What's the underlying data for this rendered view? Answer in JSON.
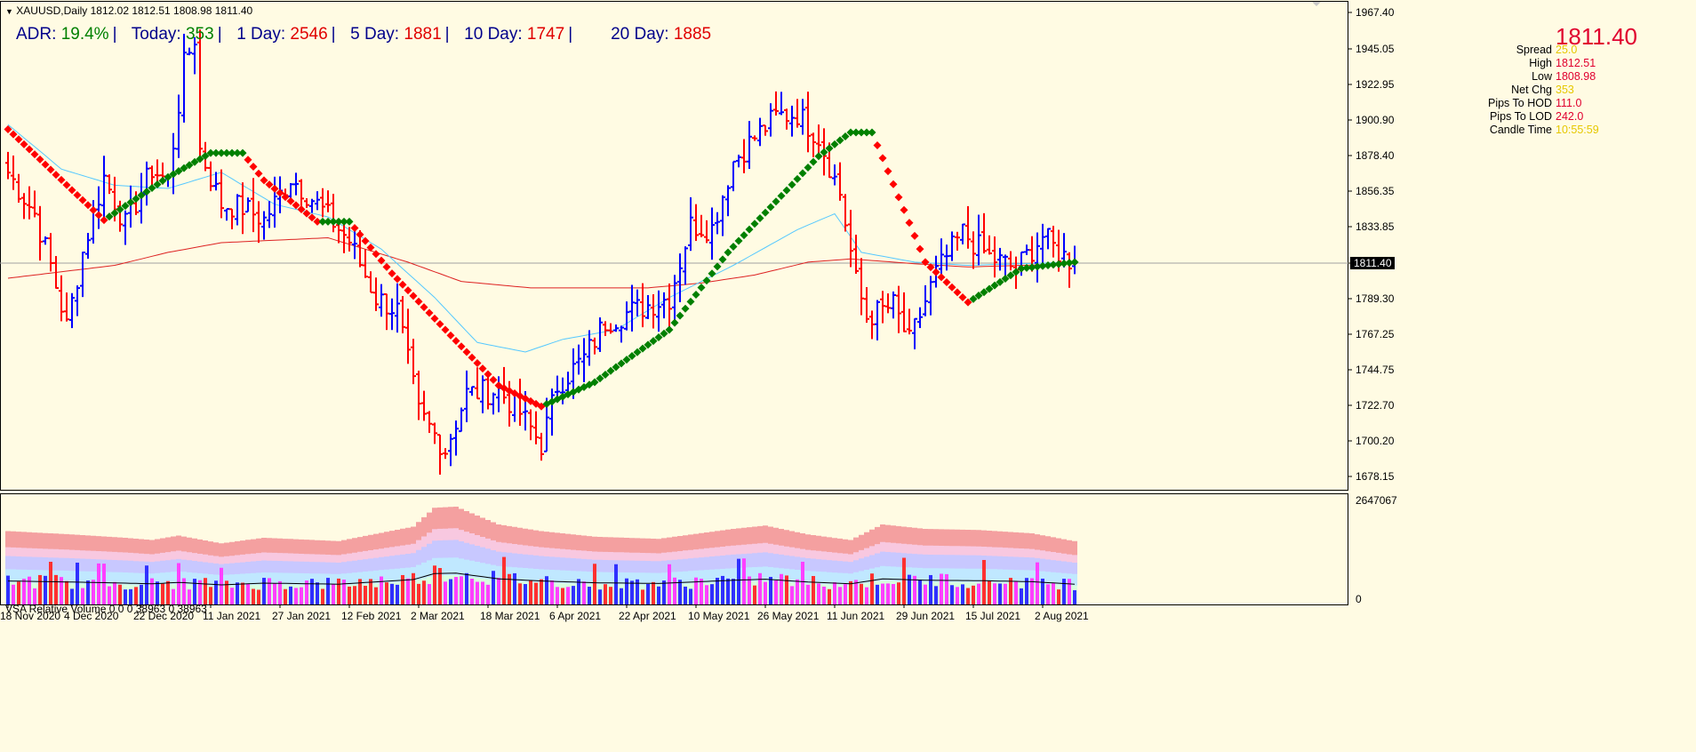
{
  "header": {
    "symbol_line": "XAUUSD,Daily  1812.02 1812.51 1808.98 1811.40",
    "symbol_arrow": "triangle-down-icon"
  },
  "adr": {
    "adr_label": "ADR:",
    "adr_value": "19.4%",
    "today_label": "Today:",
    "today_value": "353",
    "d1_label": "1 Day:",
    "d1_value": "2546",
    "d5_label": "5 Day:",
    "d5_value": "1881",
    "d10_label": "10 Day:",
    "d10_value": "1747",
    "d20_label": "20 Day:",
    "d20_value": "1885"
  },
  "info_panel": {
    "price": "1811.40",
    "rows": [
      {
        "label": "Spread",
        "value": "25.0",
        "color": "#e6c800"
      },
      {
        "label": "High",
        "value": "1812.51",
        "color": "#e0002e"
      },
      {
        "label": "Low",
        "value": "1808.98",
        "color": "#e0002e"
      },
      {
        "label": "Net Chg",
        "value": "353",
        "color": "#e6c800"
      },
      {
        "label": "Pips To HOD",
        "value": "111.0",
        "color": "#e0002e"
      },
      {
        "label": "Pips To LOD",
        "value": "242.0",
        "color": "#e0002e"
      },
      {
        "label": "Candle Time",
        "value": "10:55:59",
        "color": "#e6c800"
      }
    ]
  },
  "vsa": {
    "title": "VSA Relative Volume 0 0 0 38963 0 38963",
    "axis_top": "2647067",
    "axis_bottom": "0"
  },
  "colors": {
    "background": "#fffbe3",
    "bull": "#0000ff",
    "bear": "#ff0000",
    "trend_up": "#008000",
    "trend_down": "#ff0000",
    "ma_fast": "#55c8ff",
    "ma_slow": "#dd2222",
    "price_tag_bg": "#000000"
  },
  "chart_data": {
    "type": "ohlc",
    "price_axis": {
      "ticks": [
        "1967.40",
        "1945.05",
        "1922.95",
        "1900.90",
        "1878.40",
        "1856.35",
        "1833.85",
        "1811.40",
        "1789.30",
        "1767.25",
        "1744.75",
        "1722.70",
        "1700.20",
        "1678.15"
      ],
      "range": [
        1667,
        1970
      ],
      "current_price": 1811.4,
      "current_label": "1811.40"
    },
    "date_axis": {
      "labels": [
        "18 Nov 2020",
        "4 Dec 2020",
        "22 Dec 2020",
        "11 Jan 2021",
        "27 Jan 2021",
        "12 Feb 2021",
        "2 Mar 2021",
        "18 Mar 2021",
        "6 Apr 2021",
        "22 Apr 2021",
        "10 May 2021",
        "26 May 2021",
        "11 Jun 2021",
        "29 Jun 2021",
        "15 Jul 2021",
        "2 Aug 2021"
      ],
      "label_bar_index": [
        0,
        12,
        25,
        38,
        51,
        64,
        77,
        90,
        103,
        116,
        129,
        142,
        155,
        168,
        181,
        194
      ]
    },
    "bar_count": 201,
    "ohlc_anchor_closes": [
      [
        0,
        1868
      ],
      [
        5,
        1842
      ],
      [
        8,
        1810
      ],
      [
        11,
        1772
      ],
      [
        14,
        1818
      ],
      [
        18,
        1865
      ],
      [
        22,
        1835
      ],
      [
        27,
        1870
      ],
      [
        30,
        1862
      ],
      [
        33,
        1935
      ],
      [
        35,
        1952
      ],
      [
        36,
        1882
      ],
      [
        40,
        1848
      ],
      [
        44,
        1846
      ],
      [
        48,
        1838
      ],
      [
        53,
        1865
      ],
      [
        58,
        1848
      ],
      [
        64,
        1825
      ],
      [
        69,
        1790
      ],
      [
        73,
        1782
      ],
      [
        77,
        1718
      ],
      [
        82,
        1695
      ],
      [
        86,
        1730
      ],
      [
        92,
        1732
      ],
      [
        96,
        1718
      ],
      [
        100,
        1698
      ],
      [
        103,
        1735
      ],
      [
        108,
        1752
      ],
      [
        112,
        1775
      ],
      [
        118,
        1783
      ],
      [
        124,
        1790
      ],
      [
        128,
        1835
      ],
      [
        132,
        1833
      ],
      [
        136,
        1875
      ],
      [
        140,
        1890
      ],
      [
        144,
        1903
      ],
      [
        148,
        1905
      ],
      [
        152,
        1890
      ],
      [
        156,
        1855
      ],
      [
        159,
        1800
      ],
      [
        161,
        1778
      ],
      [
        166,
        1785
      ],
      [
        169,
        1762
      ],
      [
        174,
        1805
      ],
      [
        179,
        1830
      ],
      [
        184,
        1815
      ],
      [
        189,
        1808
      ],
      [
        194,
        1828
      ],
      [
        197,
        1818
      ],
      [
        200,
        1811
      ]
    ],
    "trend_anchors": [
      [
        0,
        1895
      ],
      [
        18,
        1838
      ],
      [
        30,
        1865
      ],
      [
        38,
        1880
      ],
      [
        44,
        1880
      ],
      [
        48,
        1863
      ],
      [
        58,
        1837
      ],
      [
        64,
        1837
      ],
      [
        72,
        1805
      ],
      [
        92,
        1735
      ],
      [
        100,
        1722
      ],
      [
        110,
        1737
      ],
      [
        124,
        1770
      ],
      [
        135,
        1818
      ],
      [
        152,
        1878
      ],
      [
        158,
        1893
      ],
      [
        162,
        1893
      ],
      [
        172,
        1812
      ],
      [
        180,
        1787
      ],
      [
        190,
        1808
      ],
      [
        200,
        1812
      ]
    ],
    "ma_fast_anchors": [
      [
        0,
        1898
      ],
      [
        10,
        1870
      ],
      [
        20,
        1860
      ],
      [
        30,
        1858
      ],
      [
        40,
        1868
      ],
      [
        50,
        1848
      ],
      [
        60,
        1840
      ],
      [
        70,
        1820
      ],
      [
        80,
        1790
      ],
      [
        88,
        1762
      ],
      [
        97,
        1756
      ],
      [
        104,
        1764
      ],
      [
        114,
        1770
      ],
      [
        124,
        1790
      ],
      [
        136,
        1810
      ],
      [
        148,
        1832
      ],
      [
        155,
        1842
      ],
      [
        160,
        1818
      ],
      [
        170,
        1812
      ],
      [
        180,
        1810
      ],
      [
        190,
        1811
      ],
      [
        200,
        1812
      ]
    ],
    "ma_slow_anchors": [
      [
        0,
        1802
      ],
      [
        20,
        1810
      ],
      [
        30,
        1818
      ],
      [
        40,
        1824
      ],
      [
        60,
        1827
      ],
      [
        75,
        1812
      ],
      [
        85,
        1800
      ],
      [
        98,
        1796
      ],
      [
        110,
        1796
      ],
      [
        120,
        1796
      ],
      [
        130,
        1799
      ],
      [
        140,
        1804
      ],
      [
        150,
        1812
      ],
      [
        158,
        1814
      ],
      [
        170,
        1811
      ],
      [
        180,
        1809
      ],
      [
        190,
        1810
      ],
      [
        200,
        1811
      ]
    ],
    "volume_envelope_anchors": [
      [
        0,
        0.66
      ],
      [
        12,
        0.63
      ],
      [
        22,
        0.6
      ],
      [
        27,
        0.58
      ],
      [
        32,
        0.62
      ],
      [
        40,
        0.55
      ],
      [
        48,
        0.6
      ],
      [
        62,
        0.57
      ],
      [
        76,
        0.7
      ],
      [
        80,
        0.87
      ],
      [
        84,
        0.88
      ],
      [
        92,
        0.72
      ],
      [
        100,
        0.66
      ],
      [
        110,
        0.61
      ],
      [
        122,
        0.59
      ],
      [
        136,
        0.68
      ],
      [
        142,
        0.71
      ],
      [
        150,
        0.63
      ],
      [
        158,
        0.58
      ],
      [
        164,
        0.72
      ],
      [
        172,
        0.68
      ],
      [
        182,
        0.67
      ],
      [
        192,
        0.64
      ],
      [
        200,
        0.57
      ]
    ]
  }
}
